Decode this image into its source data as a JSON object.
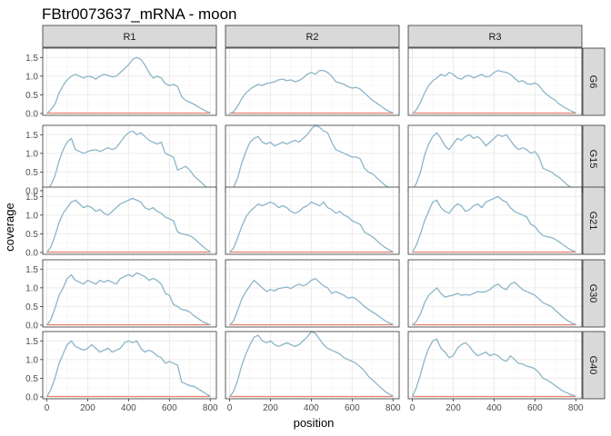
{
  "chart_data": {
    "type": "line",
    "title": "FBtr0073637_mRNA - moon",
    "xlabel": "position",
    "ylabel": "coverage",
    "xlim": [
      -20,
      830
    ],
    "ylim": [
      -0.05,
      1.75
    ],
    "x_ticks": [
      0,
      200,
      400,
      600,
      800
    ],
    "x_tick_labels": [
      "0",
      "200",
      "400",
      "600",
      "800"
    ],
    "y_ticks": [
      0.0,
      0.5,
      1.0,
      1.5
    ],
    "y_tick_labels": [
      "0.0",
      "0.5",
      "1.0",
      "1.5"
    ],
    "columns": [
      "R1",
      "R2",
      "R3"
    ],
    "rows": [
      "G6",
      "G15",
      "G21",
      "G30",
      "G40"
    ],
    "grid": true,
    "colors": {
      "coverage_line": "#8cb5c8",
      "baseline_line": "#e8826f",
      "strip_fill": "#d9d9d9",
      "grid_major": "#ebebeb",
      "grid_minor": "#f4f4f4",
      "panel_border": "#333333"
    },
    "x": [
      0,
      20,
      40,
      60,
      80,
      100,
      120,
      140,
      160,
      180,
      200,
      220,
      240,
      260,
      280,
      300,
      320,
      340,
      360,
      380,
      400,
      420,
      440,
      460,
      480,
      500,
      520,
      540,
      560,
      580,
      600,
      620,
      640,
      660,
      680,
      700,
      720,
      740,
      760,
      780,
      800
    ],
    "baseline": 0.01,
    "panels": [
      {
        "row": "G6",
        "col": "R1",
        "coverage": [
          0.0,
          0.1,
          0.25,
          0.55,
          0.75,
          0.9,
          1.0,
          1.05,
          1.0,
          0.95,
          1.0,
          0.98,
          0.92,
          1.0,
          1.05,
          1.02,
          0.98,
          1.0,
          1.1,
          1.2,
          1.3,
          1.45,
          1.5,
          1.45,
          1.3,
          1.1,
          0.95,
          1.0,
          0.95,
          0.8,
          0.75,
          0.78,
          0.72,
          0.45,
          0.35,
          0.3,
          0.25,
          0.18,
          0.12,
          0.06,
          0.02
        ]
      },
      {
        "row": "G6",
        "col": "R2",
        "coverage": [
          0.0,
          0.05,
          0.2,
          0.4,
          0.55,
          0.65,
          0.72,
          0.78,
          0.75,
          0.8,
          0.82,
          0.85,
          0.9,
          0.92,
          0.88,
          0.9,
          0.85,
          0.88,
          0.95,
          1.05,
          1.1,
          1.05,
          1.15,
          1.15,
          1.1,
          1.0,
          0.85,
          0.82,
          0.78,
          0.72,
          0.68,
          0.7,
          0.65,
          0.55,
          0.45,
          0.35,
          0.28,
          0.2,
          0.12,
          0.06,
          0.02
        ]
      },
      {
        "row": "G6",
        "col": "R3",
        "coverage": [
          0.0,
          0.1,
          0.3,
          0.55,
          0.75,
          0.88,
          0.95,
          1.05,
          1.0,
          1.1,
          1.05,
          0.95,
          0.92,
          1.0,
          1.02,
          0.95,
          1.0,
          1.05,
          0.98,
          1.0,
          1.1,
          1.15,
          1.12,
          1.1,
          1.05,
          0.95,
          0.85,
          0.88,
          0.8,
          0.78,
          0.82,
          0.75,
          0.6,
          0.5,
          0.42,
          0.35,
          0.25,
          0.18,
          0.12,
          0.06,
          0.02
        ]
      },
      {
        "row": "G15",
        "col": "R1",
        "coverage": [
          0.0,
          0.15,
          0.4,
          0.8,
          1.1,
          1.3,
          1.4,
          1.1,
          1.05,
          1.0,
          1.05,
          1.08,
          1.1,
          1.05,
          1.1,
          1.15,
          1.1,
          1.15,
          1.3,
          1.45,
          1.55,
          1.6,
          1.5,
          1.55,
          1.45,
          1.35,
          1.3,
          1.25,
          1.3,
          1.0,
          0.95,
          0.9,
          0.55,
          0.6,
          0.65,
          0.55,
          0.4,
          0.3,
          0.2,
          0.1,
          0.03
        ]
      },
      {
        "row": "G15",
        "col": "R2",
        "coverage": [
          0.0,
          0.1,
          0.35,
          0.75,
          1.05,
          1.3,
          1.4,
          1.45,
          1.3,
          1.25,
          1.3,
          1.2,
          1.25,
          1.3,
          1.25,
          1.3,
          1.35,
          1.3,
          1.4,
          1.5,
          1.65,
          1.75,
          1.7,
          1.6,
          1.55,
          1.3,
          1.1,
          1.05,
          1.0,
          0.95,
          0.9,
          0.9,
          0.85,
          0.6,
          0.5,
          0.45,
          0.35,
          0.25,
          0.15,
          0.08,
          0.02
        ]
      },
      {
        "row": "G15",
        "col": "R3",
        "coverage": [
          0.0,
          0.2,
          0.5,
          0.95,
          1.25,
          1.45,
          1.55,
          1.4,
          1.2,
          1.1,
          1.25,
          1.4,
          1.35,
          1.45,
          1.5,
          1.4,
          1.45,
          1.35,
          1.2,
          1.3,
          1.4,
          1.5,
          1.45,
          1.5,
          1.35,
          1.2,
          1.1,
          1.15,
          1.1,
          1.0,
          1.05,
          0.9,
          0.6,
          0.55,
          0.5,
          0.42,
          0.35,
          0.25,
          0.15,
          0.08,
          0.02
        ]
      },
      {
        "row": "G21",
        "col": "R1",
        "coverage": [
          0.0,
          0.15,
          0.45,
          0.8,
          1.05,
          1.2,
          1.35,
          1.4,
          1.3,
          1.2,
          1.25,
          1.2,
          1.1,
          1.15,
          1.05,
          1.0,
          1.1,
          1.2,
          1.3,
          1.35,
          1.4,
          1.45,
          1.4,
          1.35,
          1.2,
          1.15,
          1.2,
          1.1,
          1.05,
          0.95,
          0.9,
          0.85,
          0.55,
          0.5,
          0.48,
          0.45,
          0.38,
          0.28,
          0.18,
          0.09,
          0.02
        ]
      },
      {
        "row": "G21",
        "col": "R2",
        "coverage": [
          0.0,
          0.12,
          0.4,
          0.7,
          0.95,
          1.1,
          1.2,
          1.3,
          1.25,
          1.3,
          1.35,
          1.3,
          1.2,
          1.25,
          1.2,
          1.1,
          1.05,
          1.1,
          1.2,
          1.25,
          1.35,
          1.3,
          1.25,
          1.35,
          1.2,
          1.15,
          1.05,
          1.1,
          1.0,
          0.95,
          0.85,
          0.8,
          0.75,
          0.55,
          0.48,
          0.42,
          0.32,
          0.22,
          0.14,
          0.07,
          0.02
        ]
      },
      {
        "row": "G21",
        "col": "R3",
        "coverage": [
          0.0,
          0.2,
          0.5,
          0.85,
          1.1,
          1.35,
          1.4,
          1.2,
          1.1,
          1.05,
          1.2,
          1.3,
          1.25,
          1.1,
          1.15,
          1.25,
          1.3,
          1.2,
          1.35,
          1.4,
          1.45,
          1.5,
          1.4,
          1.35,
          1.2,
          1.1,
          1.05,
          1.0,
          0.95,
          0.75,
          0.7,
          0.55,
          0.45,
          0.42,
          0.4,
          0.35,
          0.28,
          0.2,
          0.12,
          0.06,
          0.02
        ]
      },
      {
        "row": "G30",
        "col": "R1",
        "coverage": [
          0.0,
          0.15,
          0.45,
          0.8,
          1.0,
          1.25,
          1.35,
          1.2,
          1.15,
          1.1,
          1.2,
          1.15,
          1.1,
          1.2,
          1.15,
          1.2,
          1.15,
          1.1,
          1.25,
          1.3,
          1.35,
          1.3,
          1.4,
          1.35,
          1.3,
          1.2,
          1.25,
          1.2,
          1.1,
          0.85,
          0.8,
          0.55,
          0.5,
          0.42,
          0.4,
          0.35,
          0.25,
          0.18,
          0.1,
          0.05,
          0.01
        ]
      },
      {
        "row": "G30",
        "col": "R2",
        "coverage": [
          0.0,
          0.12,
          0.4,
          0.7,
          0.9,
          1.05,
          1.2,
          1.1,
          1.0,
          0.9,
          0.95,
          0.92,
          0.98,
          1.0,
          1.02,
          0.98,
          1.05,
          1.1,
          1.05,
          1.1,
          1.2,
          1.25,
          1.15,
          1.05,
          1.0,
          0.85,
          0.9,
          0.85,
          0.8,
          0.72,
          0.75,
          0.7,
          0.6,
          0.5,
          0.42,
          0.35,
          0.28,
          0.2,
          0.12,
          0.06,
          0.02
        ]
      },
      {
        "row": "G30",
        "col": "R3",
        "coverage": [
          0.0,
          0.1,
          0.3,
          0.6,
          0.8,
          0.9,
          1.0,
          0.85,
          0.75,
          0.78,
          0.8,
          0.85,
          0.8,
          0.82,
          0.8,
          0.85,
          0.9,
          0.88,
          0.9,
          0.95,
          1.05,
          1.1,
          1.0,
          0.95,
          1.1,
          1.15,
          1.05,
          0.95,
          0.9,
          0.85,
          0.8,
          0.7,
          0.6,
          0.55,
          0.5,
          0.4,
          0.3,
          0.2,
          0.12,
          0.06,
          0.02
        ]
      },
      {
        "row": "G40",
        "col": "R1",
        "coverage": [
          0.0,
          0.2,
          0.5,
          0.9,
          1.15,
          1.4,
          1.5,
          1.35,
          1.3,
          1.25,
          1.3,
          1.4,
          1.3,
          1.2,
          1.25,
          1.3,
          1.2,
          1.25,
          1.3,
          1.45,
          1.5,
          1.45,
          1.5,
          1.3,
          1.2,
          1.25,
          1.2,
          1.1,
          1.05,
          0.9,
          0.95,
          0.9,
          0.85,
          0.4,
          0.35,
          0.3,
          0.28,
          0.22,
          0.15,
          0.08,
          0.02
        ]
      },
      {
        "row": "G40",
        "col": "R2",
        "coverage": [
          0.0,
          0.15,
          0.45,
          0.85,
          1.15,
          1.4,
          1.6,
          1.65,
          1.5,
          1.45,
          1.5,
          1.4,
          1.35,
          1.4,
          1.45,
          1.4,
          1.35,
          1.4,
          1.5,
          1.6,
          1.75,
          1.7,
          1.55,
          1.4,
          1.3,
          1.25,
          1.2,
          1.15,
          1.05,
          1.0,
          0.95,
          0.9,
          0.8,
          0.7,
          0.55,
          0.45,
          0.35,
          0.25,
          0.15,
          0.08,
          0.02
        ]
      },
      {
        "row": "G40",
        "col": "R3",
        "coverage": [
          0.0,
          0.25,
          0.6,
          1.0,
          1.3,
          1.5,
          1.55,
          1.3,
          1.2,
          1.05,
          1.1,
          1.3,
          1.4,
          1.45,
          1.35,
          1.2,
          1.1,
          1.15,
          1.2,
          1.1,
          1.15,
          1.1,
          1.0,
          0.95,
          1.1,
          1.0,
          0.9,
          0.88,
          0.82,
          0.8,
          0.75,
          0.65,
          0.5,
          0.45,
          0.38,
          0.3,
          0.22,
          0.15,
          0.1,
          0.05,
          0.02
        ]
      }
    ]
  }
}
